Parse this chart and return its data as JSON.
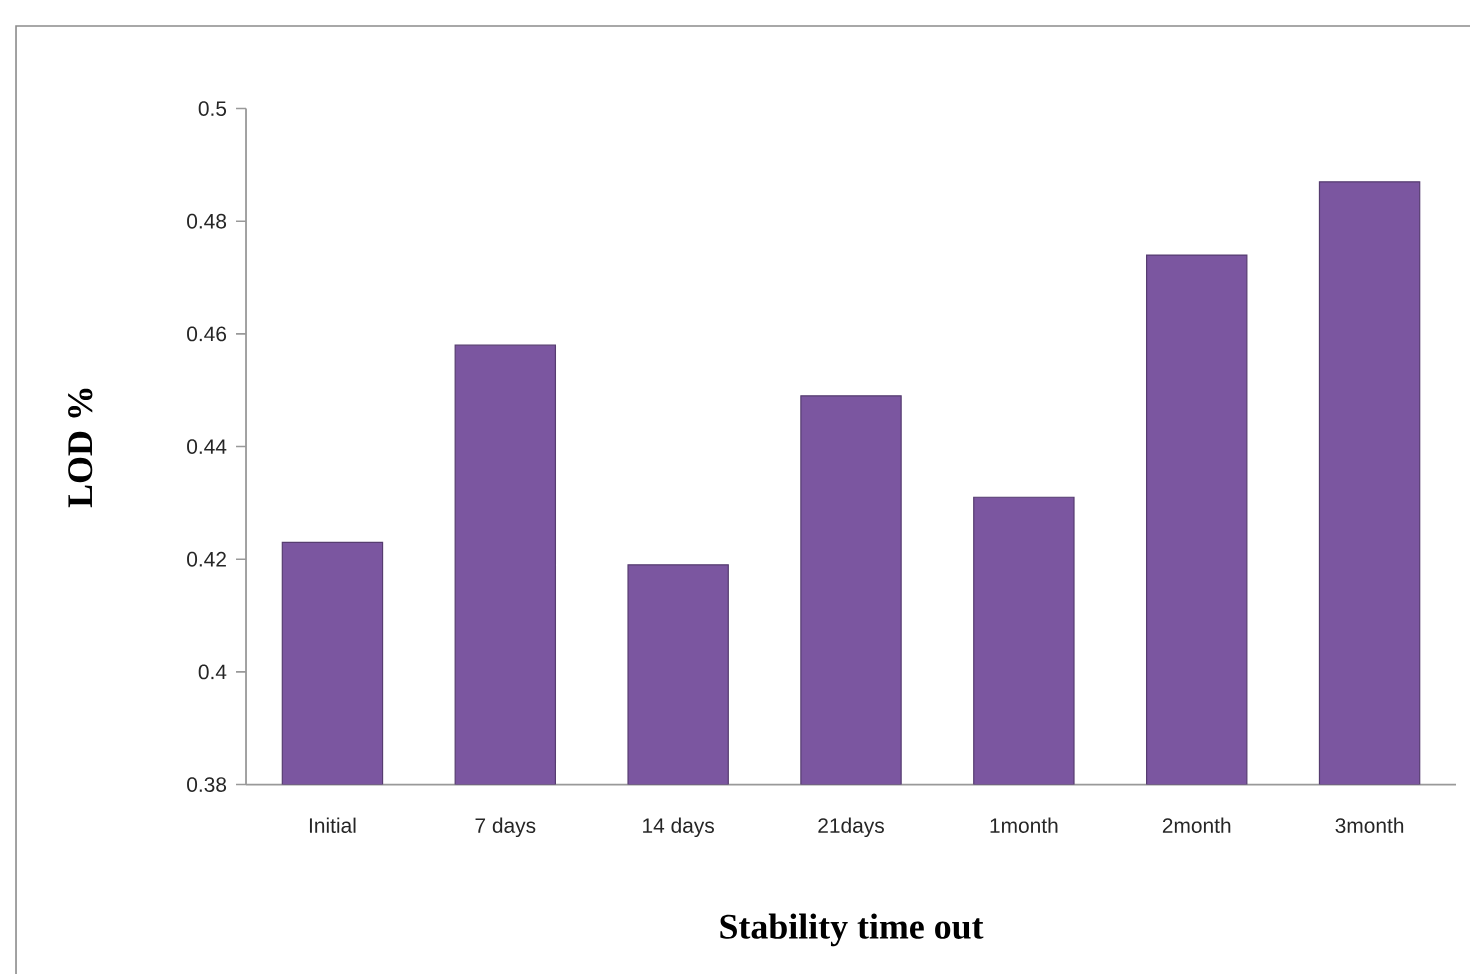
{
  "chart_data": {
    "type": "bar",
    "xlabel": "Stability time out",
    "ylabel": "LOD %",
    "categories": [
      "Initial",
      "7 days",
      "14 days",
      "21days",
      "1month",
      "2month",
      "3month"
    ],
    "values": [
      0.423,
      0.458,
      0.419,
      0.449,
      0.431,
      0.474,
      0.487
    ],
    "color": "#7b56a0",
    "ylim": [
      0.38,
      0.5
    ],
    "yticks": [
      0.38,
      0.4,
      0.42,
      0.44,
      0.46,
      0.48,
      0.5
    ]
  }
}
